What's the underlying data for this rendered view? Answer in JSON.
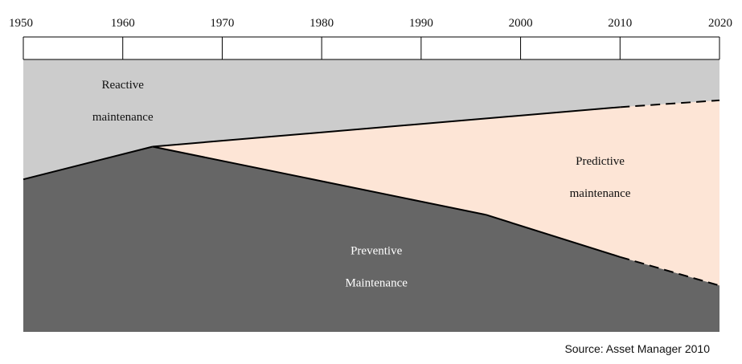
{
  "chart_data": {
    "type": "area",
    "title": "",
    "xlabel": "",
    "ylabel": "",
    "x_ticks": [
      1950,
      1960,
      1970,
      1980,
      1990,
      2000,
      2010,
      2020
    ],
    "xlim": [
      1950,
      2020
    ],
    "ylim": [
      0,
      100
    ],
    "grid": false,
    "colors": {
      "reactive": "#cccccc",
      "preventive": "#666666",
      "predictive": "#fde5d6",
      "line": "#000000"
    },
    "boundaries": {
      "preventive_top": {
        "x": [
          1950,
          1963,
          1996.5,
          2010,
          2020
        ],
        "y": [
          56,
          68,
          43,
          27.5,
          17
        ],
        "dashed_from": 2010
      },
      "predictive_top": {
        "x": [
          1963,
          2010,
          2020
        ],
        "y": [
          68,
          82.5,
          85
        ],
        "dashed_from": 2010
      }
    },
    "regions": [
      {
        "name": "reactive",
        "label_lines": [
          "Reactive",
          "maintenance"
        ],
        "label_pos": [
          1960,
          85
        ]
      },
      {
        "name": "preventive",
        "label_lines": [
          "Preventive",
          "Maintenance"
        ],
        "label_pos": [
          1985.5,
          24
        ]
      },
      {
        "name": "predictive",
        "label_lines": [
          "Predictive",
          "maintenance"
        ],
        "label_pos": [
          2008,
          57
        ]
      }
    ]
  },
  "source_text": "Source: Asset Manager 2010"
}
